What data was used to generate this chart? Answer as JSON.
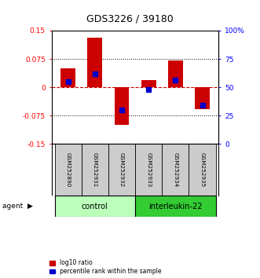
{
  "title": "GDS3226 / 39180",
  "samples": [
    "GSM252890",
    "GSM252931",
    "GSM252932",
    "GSM252933",
    "GSM252934",
    "GSM252935"
  ],
  "log10_ratio": [
    0.05,
    0.132,
    -0.1,
    0.018,
    0.07,
    -0.058
  ],
  "percentile_rank": [
    55,
    62,
    30,
    48,
    56,
    34
  ],
  "groups": [
    {
      "label": "control",
      "indices": [
        0,
        1,
        2
      ],
      "color": "#bbffbb"
    },
    {
      "label": "interleukin-22",
      "indices": [
        3,
        4,
        5
      ],
      "color": "#33cc33"
    }
  ],
  "ylim_left": [
    -0.15,
    0.15
  ],
  "ylim_right": [
    0,
    100
  ],
  "yticks_left": [
    -0.15,
    -0.075,
    0,
    0.075,
    0.15
  ],
  "yticks_right": [
    0,
    25,
    50,
    75,
    100
  ],
  "bar_color": "#cc0000",
  "marker_color": "#0000cc",
  "zero_line_color": "#cc0000",
  "grid_color": "#000000",
  "bg_color": "#ffffff",
  "sample_box_color": "#cccccc",
  "legend": [
    "log10 ratio",
    "percentile rank within the sample"
  ]
}
